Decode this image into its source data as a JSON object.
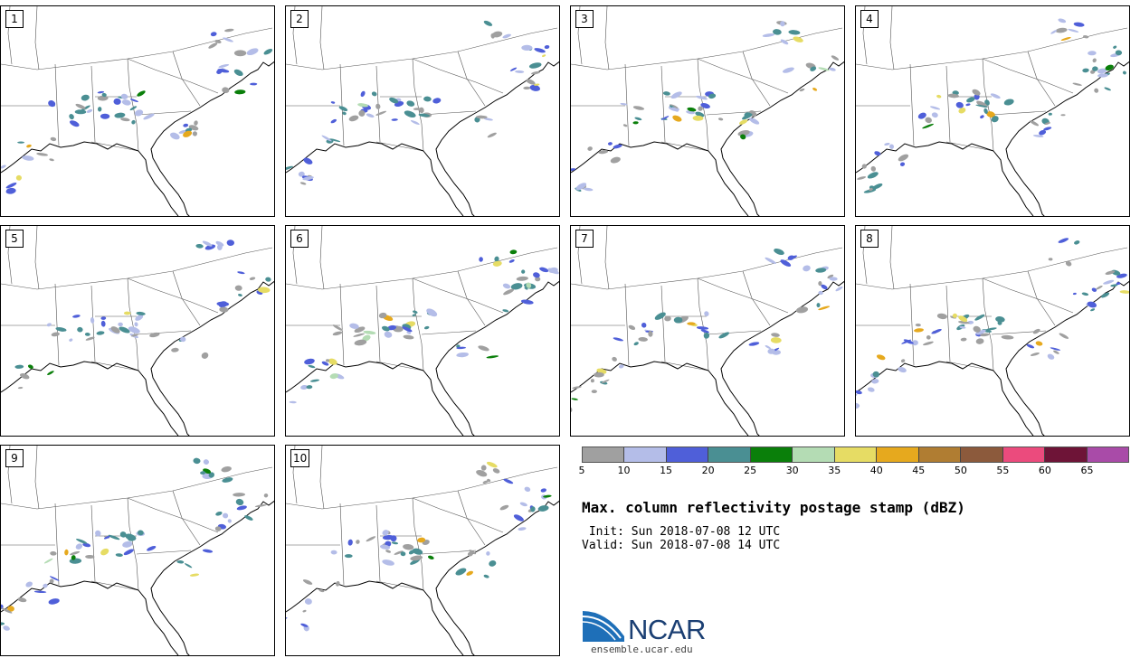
{
  "figure": {
    "title": "Max. column reflectivity postage stamp (dBZ)",
    "init": " Init: Sun 2018-07-08 12 UTC",
    "valid": "Valid: Sun 2018-07-08 14 UTC"
  },
  "members": [
    "1",
    "2",
    "3",
    "4",
    "5",
    "6",
    "7",
    "8",
    "9",
    "10"
  ],
  "colorbar": {
    "ticks": [
      "5",
      "10",
      "15",
      "20",
      "25",
      "30",
      "35",
      "40",
      "45",
      "50",
      "55",
      "60",
      "65"
    ],
    "colors": [
      "#a0a0a0",
      "#b4bde8",
      "#4f5fd9",
      "#4a8f93",
      "#0a7f0a",
      "#b4dcb4",
      "#e6dc64",
      "#e6a91e",
      "#b07d32",
      "#8c5a3c",
      "#eb4b7d",
      "#6e1437",
      "#a94ba8"
    ]
  },
  "branding": {
    "logo_text": "NCAR",
    "url": "ensemble.ucar.edu"
  }
}
